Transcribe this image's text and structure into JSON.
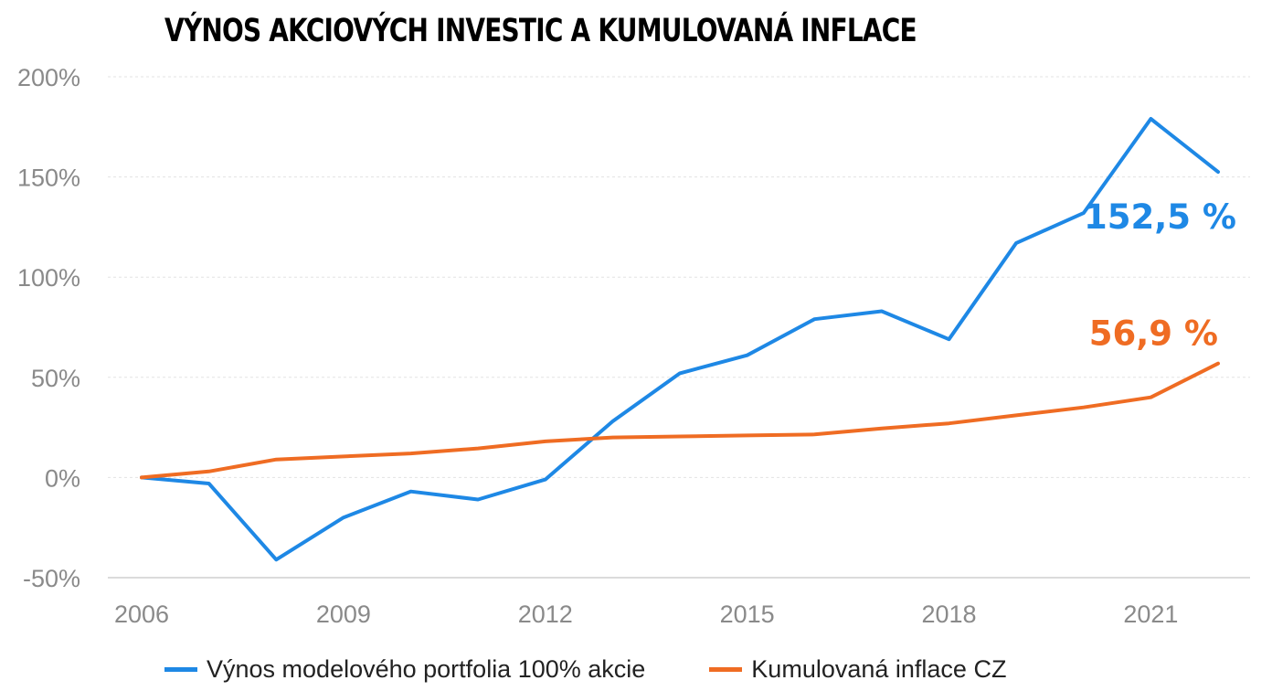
{
  "chart_data": {
    "type": "line",
    "title": "VÝNOS AKCIOVÝCH INVESTIC A KUMULOVANÁ INFLACE",
    "xlabel": "",
    "ylabel": "",
    "x": [
      2006,
      2007,
      2008,
      2009,
      2010,
      2011,
      2012,
      2013,
      2014,
      2015,
      2016,
      2017,
      2018,
      2019,
      2020,
      2021,
      2022
    ],
    "xticks": [
      "2006",
      "2009",
      "2012",
      "2015",
      "2018",
      "2021"
    ],
    "xtick_values": [
      2006,
      2009,
      2012,
      2015,
      2018,
      2021
    ],
    "xlim": [
      2006,
      2022
    ],
    "yticks": [
      "200%",
      "150%",
      "100%",
      "50%",
      "0%",
      "-50%"
    ],
    "ytick_values": [
      200,
      150,
      100,
      50,
      0,
      -50
    ],
    "ylim": [
      -50,
      200
    ],
    "grid": true,
    "legend_position": "bottom",
    "series": [
      {
        "name": "Výnos modelového portfolia 100% akcie",
        "color": "#1E88E5",
        "values": [
          0,
          -3,
          -41,
          -20,
          -7,
          -11,
          -1,
          28,
          52,
          61,
          79,
          83,
          69,
          117,
          132,
          179,
          152.5
        ],
        "end_label": "152,5 %"
      },
      {
        "name": "Kumulovaná inflace CZ",
        "color": "#EF6C23",
        "values": [
          0,
          3,
          9,
          10.5,
          12,
          14.5,
          18,
          20,
          20.5,
          21,
          21.5,
          24.5,
          27,
          31,
          35,
          40,
          56.9
        ],
        "end_label": "56,9 %"
      }
    ]
  }
}
